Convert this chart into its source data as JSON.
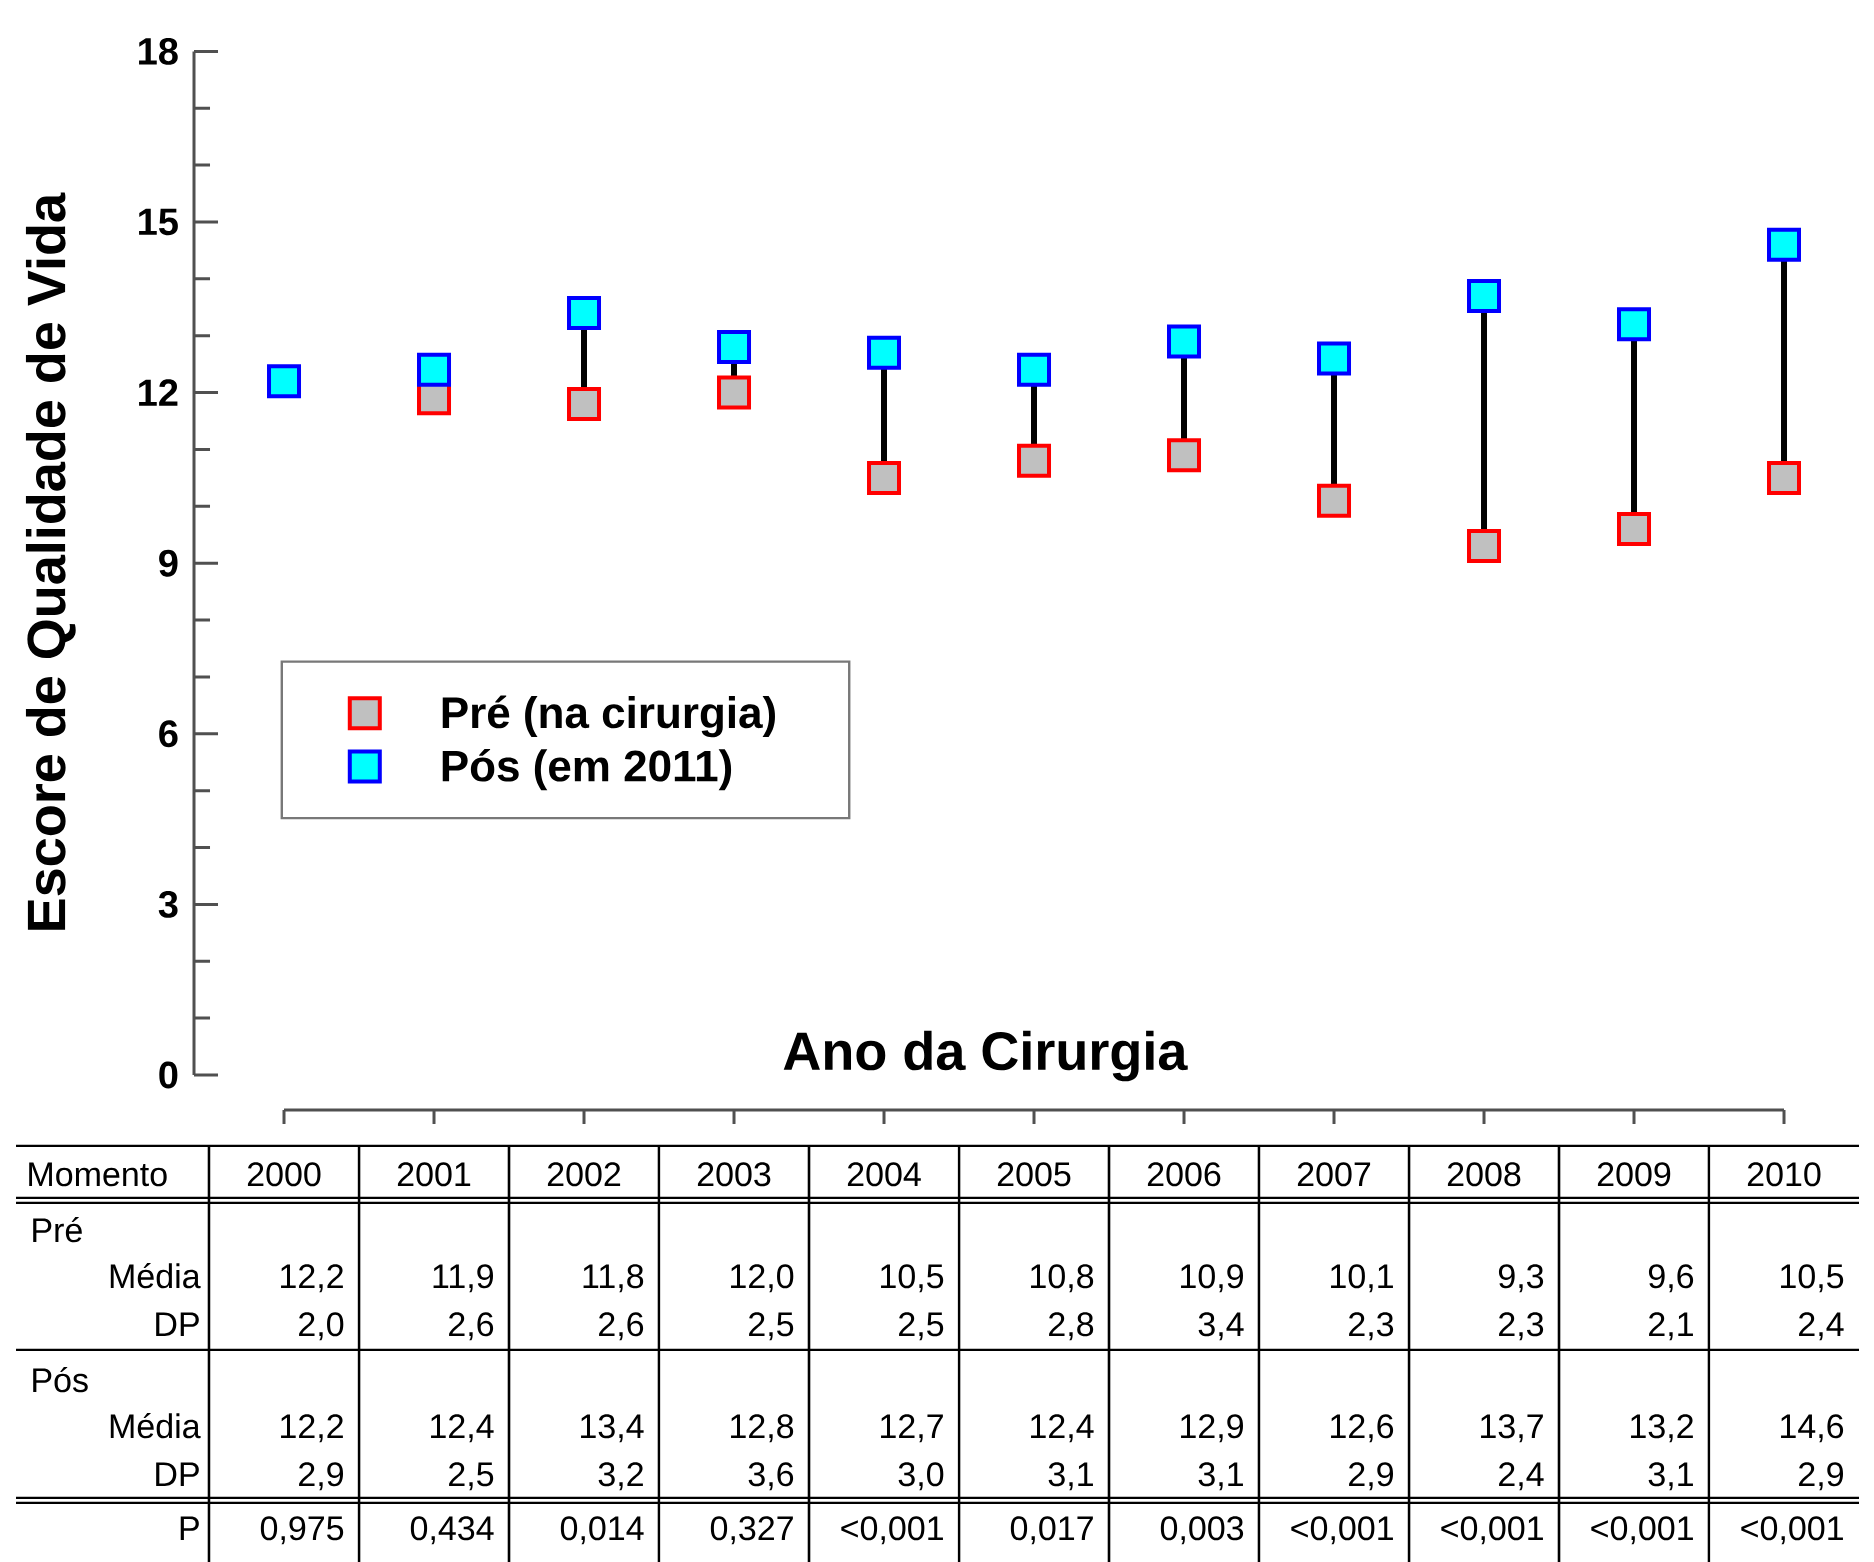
{
  "chart_data": {
    "type": "scatter",
    "xlabel": "Ano da Cirurgia",
    "ylabel": "Escore de Qualidade de Vida",
    "categories": [
      "2000",
      "2001",
      "2002",
      "2003",
      "2004",
      "2005",
      "2006",
      "2007",
      "2008",
      "2009",
      "2010"
    ],
    "series": [
      {
        "name": "Pré (na cirurgia)",
        "color": "#c0c0c0",
        "values": [
          null,
          11.9,
          11.8,
          12.0,
          10.5,
          10.8,
          10.9,
          10.1,
          9.3,
          9.6,
          10.5
        ],
        "value_labels": [
          "12,2",
          "11,9",
          "11,8",
          "12,0",
          "10,5",
          "10,8",
          "10,9",
          "10,1",
          "9,3",
          "9,6",
          "10,5"
        ]
      },
      {
        "name": "Pós (em 2011)",
        "color": "#00ffff",
        "values": [
          12.2,
          12.4,
          13.4,
          12.8,
          12.7,
          12.4,
          12.9,
          12.6,
          13.7,
          13.2,
          14.6
        ],
        "value_labels": [
          "12,2",
          "12,4",
          "13,4",
          "12,8",
          "12,7",
          "12,4",
          "12,9",
          "12,6",
          "13,7",
          "13,2",
          "14,6"
        ]
      }
    ],
    "ylim": [
      0,
      18
    ],
    "yticks": [
      0,
      {
        "value": 1,
        "label": null
      },
      {
        "value": 2,
        "label": null
      },
      3,
      {
        "value": 4,
        "label": null
      },
      {
        "value": 5,
        "label": null
      },
      6,
      {
        "value": 7,
        "label": null
      },
      {
        "value": 8,
        "label": null
      },
      9,
      {
        "value": 10,
        "label": null
      },
      {
        "value": 11,
        "label": null
      },
      12,
      {
        "value": 13,
        "label": null
      },
      {
        "value": 14,
        "label": null
      },
      15,
      {
        "value": 16,
        "label": null
      },
      {
        "value": 17,
        "label": null
      },
      18
    ],
    "marker": "square",
    "legend": "left",
    "annotations": [
      "Momento",
      "Pré",
      "Média",
      "DP",
      "Pós",
      "Média",
      "DP",
      "P",
      "2,0",
      "2,6",
      "2,6",
      "2,5",
      "2,5",
      "2,8",
      "3,4",
      "2,3",
      "2,3",
      "2,1",
      "2,4",
      "2,9",
      "2,5",
      "3,2",
      "3,6",
      "3,0",
      "3,1",
      "3,1",
      "2,9",
      "2,4",
      "3,1",
      "2,9",
      "0,975",
      "0,434",
      "0,014",
      "0,327",
      "<0,001",
      "0,017",
      "0,003",
      "<0,001",
      "<0,001",
      "<0,001",
      "<0,001"
    ]
  }
}
